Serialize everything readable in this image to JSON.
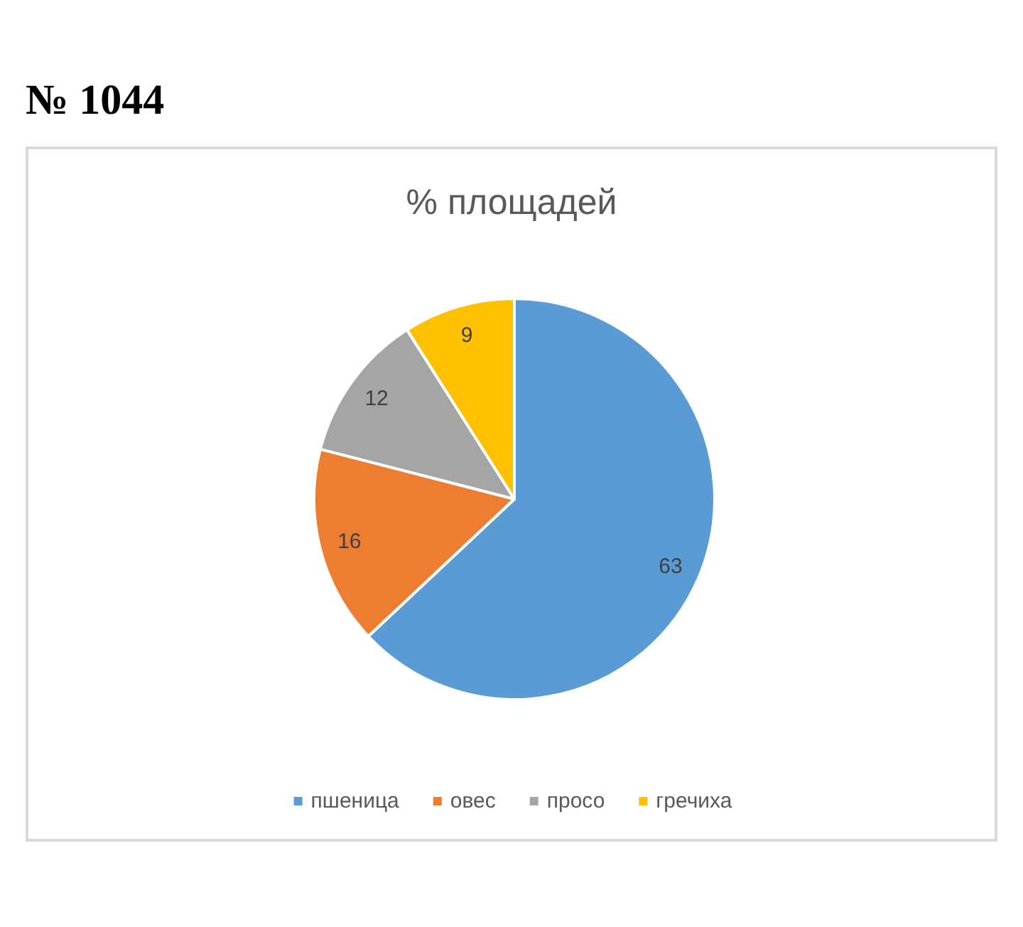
{
  "chart_data": {
    "type": "pie",
    "title": "% площадей",
    "annotations": [
      "№ 1044"
    ],
    "categories": [
      "пшеница",
      "овес",
      "просо",
      "гречиха"
    ],
    "values": [
      63,
      16,
      12,
      9
    ],
    "colors": [
      "#5b9bd5",
      "#ed7d31",
      "#a5a5a5",
      "#ffc000"
    ],
    "data_labels": true,
    "legend": "bottom"
  }
}
